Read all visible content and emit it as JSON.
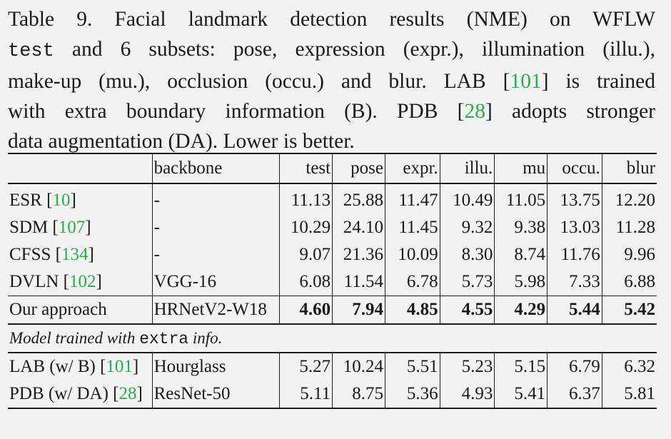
{
  "caption": {
    "line1": "Table 9. Facial landmark detection results (NME) on WFLW",
    "line2_mono": "test",
    "line2_rest": " and 6 subsets: pose, expression (expr.), illumination (illu.),",
    "line3_pre": "make-up (mu.), occlusion (occu.) and blur. LAB [",
    "line3_ref": "101",
    "line3_post": "] is trained",
    "line4_pre": "with extra boundary information (B). PDB [",
    "line4_ref": "28",
    "line4_post": "] adopts stronger",
    "line5": "data augmentation (DA). Lower is better."
  },
  "table": {
    "headers": [
      "",
      "backbone",
      "test",
      "pose",
      "expr.",
      "illu.",
      "mu",
      "occu.",
      "blur"
    ],
    "rows": [
      {
        "method": "ESR [",
        "ref": "10",
        "close": "]",
        "backbone": "-",
        "values": [
          "11.13",
          "25.88",
          "11.47",
          "10.49",
          "11.05",
          "13.75",
          "12.20"
        ]
      },
      {
        "method": "SDM [",
        "ref": "107",
        "close": "]",
        "backbone": "-",
        "values": [
          "10.29",
          "24.10",
          "11.45",
          "9.32",
          "9.38",
          "13.03",
          "11.28"
        ]
      },
      {
        "method": "CFSS [",
        "ref": "134",
        "close": "]",
        "backbone": "-",
        "values": [
          "9.07",
          "21.36",
          "10.09",
          "8.30",
          "8.74",
          "11.76",
          "9.96"
        ]
      },
      {
        "method": "DVLN [",
        "ref": "102",
        "close": "]",
        "backbone": "VGG-16",
        "values": [
          "6.08",
          "11.54",
          "6.78",
          "5.73",
          "5.98",
          "7.33",
          "6.88"
        ]
      }
    ],
    "ours": {
      "method": "Our approach",
      "backbone": "HRNetV2-W18",
      "values": [
        "4.60",
        "7.94",
        "4.85",
        "4.55",
        "4.29",
        "5.44",
        "5.42"
      ]
    },
    "extra_note": {
      "pre": "Model trained with ",
      "mono": "extra",
      "post": " info."
    },
    "extra_rows": [
      {
        "method": "LAB (w/ B) [",
        "ref": "101",
        "close": "]",
        "backbone": "Hourglass",
        "values": [
          "5.27",
          "10.24",
          "5.51",
          "5.23",
          "5.15",
          "6.79",
          "6.32"
        ]
      },
      {
        "method": "PDB (w/ DA) [",
        "ref": "28",
        "close": "]",
        "backbone": "ResNet-50",
        "values": [
          "5.11",
          "8.75",
          "5.36",
          "4.93",
          "5.41",
          "6.37",
          "5.81"
        ]
      }
    ]
  },
  "colors": {
    "text": "#1a1a1a",
    "reference_link": "#22b14c",
    "background": "#f2f2f2"
  }
}
